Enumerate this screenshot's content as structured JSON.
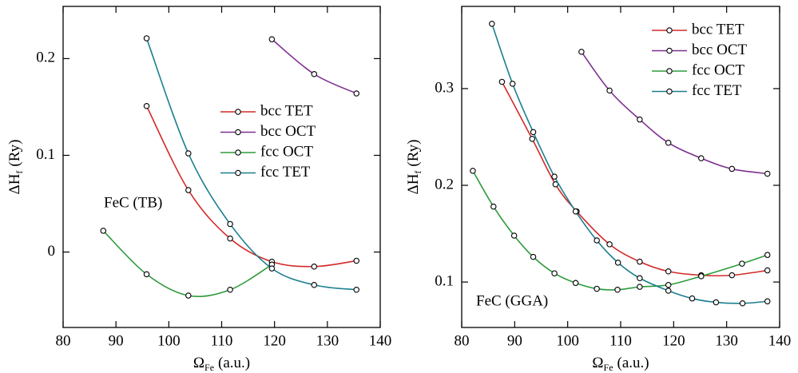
{
  "chart_data": [
    {
      "type": "line",
      "annotation": "FeC (TB)",
      "xlabel": {
        "symbol": "Ω",
        "sub": "Fe",
        "unit": "(a.u.)"
      },
      "ylabel": {
        "symbol": "ΔH",
        "sub": "f",
        "unit": "(Ry)"
      },
      "xlim": [
        80,
        140
      ],
      "ylim": [
        -0.078,
        0.254
      ],
      "xticks": [
        80,
        90,
        100,
        110,
        120,
        130,
        140
      ],
      "yticks": [
        0,
        0.1,
        0.2
      ],
      "legend": "center right",
      "series": [
        {
          "name": "bcc TET",
          "color": "#d42a2a",
          "x": [
            95.8,
            103.7,
            111.6,
            119.5,
            127.5,
            135.5
          ],
          "values": [
            0.151,
            0.064,
            0.014,
            -0.01,
            -0.015,
            -0.009
          ]
        },
        {
          "name": "bcc OCT",
          "color": "#7d2f8f",
          "x": [
            119.5,
            127.5,
            135.5
          ],
          "values": [
            0.22,
            0.184,
            0.164
          ]
        },
        {
          "name": "fcc OCT",
          "color": "#2e9b3c",
          "x": [
            87.6,
            95.8,
            103.7,
            111.6,
            119.5
          ],
          "values": [
            0.022,
            -0.023,
            -0.045,
            -0.039,
            -0.013
          ]
        },
        {
          "name": "fcc TET",
          "color": "#1b7f8e",
          "x": [
            95.8,
            103.7,
            111.6,
            119.5,
            127.5,
            135.5
          ],
          "values": [
            0.221,
            0.102,
            0.029,
            -0.017,
            -0.034,
            -0.039
          ]
        }
      ]
    },
    {
      "type": "line",
      "annotation": "FeC (GGA)",
      "xlabel": {
        "symbol": "Ω",
        "sub": "Fe",
        "unit": "(a.u.)"
      },
      "ylabel": {
        "symbol": "ΔH",
        "sub": "f",
        "unit": "(Ry)"
      },
      "xlim": [
        80,
        140
      ],
      "ylim": [
        0.053,
        0.385
      ],
      "xticks": [
        80,
        90,
        100,
        110,
        120,
        130,
        140
      ],
      "yticks": [
        0.1,
        0.2,
        0.3
      ],
      "legend": "upper right",
      "series": [
        {
          "name": "bcc TET",
          "color": "#d42a2a",
          "x": [
            87.6,
            93.3,
            97.7,
            101.7,
            107.9,
            113.6,
            119.0,
            125.2,
            131.0,
            137.7
          ],
          "values": [
            0.307,
            0.248,
            0.201,
            0.173,
            0.139,
            0.121,
            0.111,
            0.107,
            0.107,
            0.112
          ]
        },
        {
          "name": "bcc OCT",
          "color": "#7d2f8f",
          "x": [
            102.6,
            107.9,
            113.6,
            119.0,
            125.2,
            131.0,
            137.7
          ],
          "values": [
            0.338,
            0.298,
            0.268,
            0.244,
            0.228,
            0.217,
            0.212
          ]
        },
        {
          "name": "fcc OCT",
          "color": "#2e9b3c",
          "x": [
            82.1,
            86.0,
            89.9,
            93.5,
            97.5,
            101.5,
            105.5,
            109.4,
            113.6,
            119.0,
            125.2,
            132.9,
            137.7
          ],
          "values": [
            0.215,
            0.178,
            0.148,
            0.126,
            0.109,
            0.099,
            0.093,
            0.092,
            0.095,
            0.097,
            0.106,
            0.119,
            0.128
          ]
        },
        {
          "name": "fcc TET",
          "color": "#1b7f8e",
          "x": [
            85.7,
            89.6,
            93.5,
            97.5,
            101.5,
            105.5,
            109.5,
            113.6,
            119.0,
            123.5,
            128.0,
            133.0,
            137.7
          ],
          "values": [
            0.367,
            0.305,
            0.255,
            0.209,
            0.173,
            0.143,
            0.12,
            0.104,
            0.091,
            0.083,
            0.079,
            0.078,
            0.08
          ]
        }
      ]
    }
  ]
}
